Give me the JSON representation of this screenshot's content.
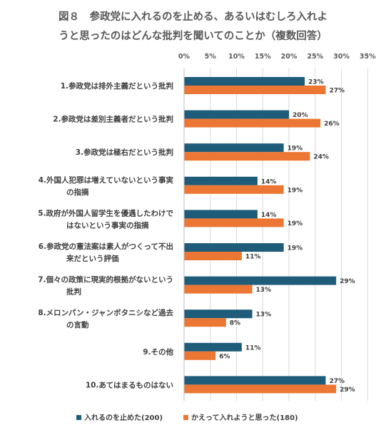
{
  "title_line1": "図８　参政党に入れるのを止める、あるいはむしろ入れよ",
  "title_line2": "うと思ったのはどんな批判を聞いてのことか（複数回答）",
  "chart_data": {
    "type": "bar",
    "orientation": "horizontal",
    "xlim": [
      0,
      35
    ],
    "ticks": [
      "0%",
      "5%",
      "10%",
      "15%",
      "20%",
      "25%",
      "30%",
      "35%"
    ],
    "tick_values": [
      0,
      5,
      10,
      15,
      20,
      25,
      30,
      35
    ],
    "grid": true,
    "legend_position": "bottom",
    "categories": [
      [
        "1.参政党は排外主義だという批判"
      ],
      [
        "2.参政党は差別主義者だという批判"
      ],
      [
        "3.参政党は極右だという批判"
      ],
      [
        "4.外国人犯罪は増えていないという事実",
        "の指摘"
      ],
      [
        "5.政府が外国人留学生を優遇したわけで",
        "はないという事実の指摘"
      ],
      [
        "6.参政党の憲法案は素人がつくって不出",
        "来だという評価"
      ],
      [
        "7.個々の政策に現実的根拠がないという",
        "批判"
      ],
      [
        "8.メロンパン・ジャンボタニシなど過去",
        "の言動"
      ],
      [
        "9.その他"
      ],
      [
        "10.あてはまるものはない"
      ]
    ],
    "series": [
      {
        "name": "入れるのを止めた(200)",
        "color": "#1F5C7A",
        "values": [
          23,
          20,
          19,
          14,
          14,
          19,
          29,
          13,
          11,
          27
        ],
        "labels": [
          "23%",
          "20%",
          "19%",
          "14%",
          "14%",
          "19%",
          "29%",
          "13%",
          "11%",
          "27%"
        ]
      },
      {
        "name": "かえって入れようと思った(180)",
        "color": "#EC7633",
        "values": [
          27,
          26,
          24,
          19,
          19,
          11,
          13,
          8,
          6,
          29
        ],
        "labels": [
          "27%",
          "26%",
          "24%",
          "19%",
          "19%",
          "11%",
          "13%",
          "8%",
          "6%",
          "29%"
        ]
      }
    ]
  }
}
